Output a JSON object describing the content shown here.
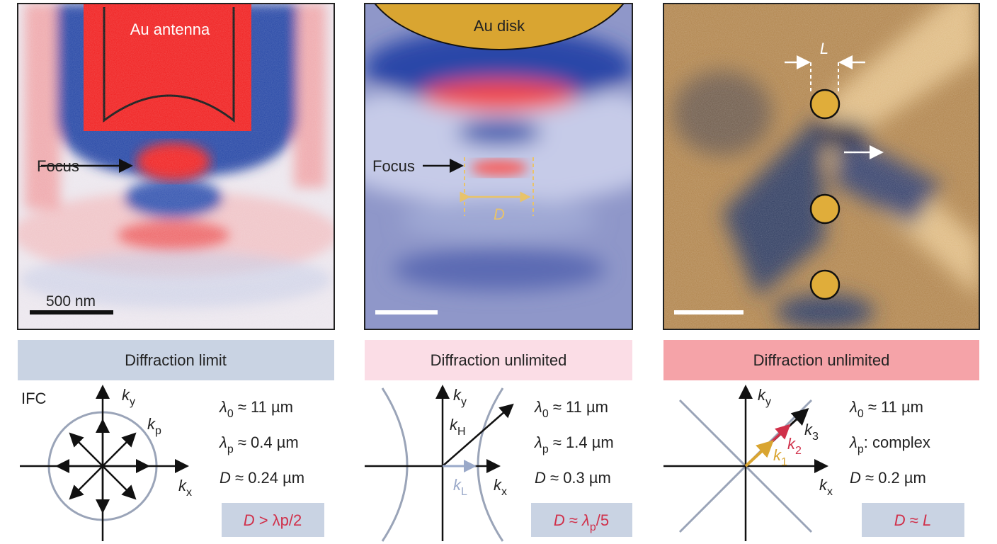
{
  "panels": [
    {
      "image_labels": {
        "material": "Au antenna",
        "focus": "Focus",
        "scale_bar": "500 nm"
      },
      "header": "Diffraction limit",
      "ifc_label": "IFC",
      "wavevectors": [
        {
          "segments": [
            {
              "text": "k",
              "style": "italic"
            },
            {
              "text": "y",
              "style": "sub"
            }
          ]
        },
        {
          "segments": [
            {
              "text": "k",
              "style": "italic"
            },
            {
              "text": "p",
              "style": "sub"
            }
          ]
        },
        {
          "segments": [
            {
              "text": "k",
              "style": "italic"
            },
            {
              "text": "x",
              "style": "sub"
            }
          ]
        }
      ],
      "equations": [
        {
          "segments": [
            {
              "text": "λ",
              "style": "italic"
            },
            {
              "text": "0",
              "style": "sub"
            },
            {
              "text": " ≈ 11 µm",
              "style": "plain"
            }
          ]
        },
        {
          "segments": [
            {
              "text": "λ",
              "style": "italic"
            },
            {
              "text": "p",
              "style": "sub"
            },
            {
              "text": " ≈ 0.4 µm",
              "style": "plain"
            }
          ]
        },
        {
          "segments": [
            {
              "text": "D",
              "style": "italic"
            },
            {
              "text": " ≈ 0.24 µm",
              "style": "plain"
            }
          ]
        }
      ],
      "conclusion": {
        "segments": [
          {
            "text": "D",
            "style": "italic"
          },
          {
            "text": " > λp/2",
            "style": "plain"
          }
        ]
      }
    },
    {
      "image_labels": {
        "material": "Au disk",
        "focus": "Focus",
        "width": "D"
      },
      "header": "Diffraction unlimited",
      "wavevectors": [
        {
          "segments": [
            {
              "text": "k",
              "style": "italic"
            },
            {
              "text": "y",
              "style": "sub"
            }
          ]
        },
        {
          "segments": [
            {
              "text": "k",
              "style": "italic"
            },
            {
              "text": "H",
              "style": "sub"
            }
          ]
        },
        {
          "segments": [
            {
              "text": "k",
              "style": "italic"
            },
            {
              "text": "L",
              "style": "sub"
            }
          ]
        },
        {
          "segments": [
            {
              "text": "k",
              "style": "italic"
            },
            {
              "text": "x",
              "style": "sub"
            }
          ]
        }
      ],
      "equations": [
        {
          "segments": [
            {
              "text": "λ",
              "style": "italic"
            },
            {
              "text": "0",
              "style": "sub"
            },
            {
              "text": " ≈ 11 µm",
              "style": "plain"
            }
          ]
        },
        {
          "segments": [
            {
              "text": "λ",
              "style": "italic"
            },
            {
              "text": "p",
              "style": "sub"
            },
            {
              "text": " ≈ 1.4 µm",
              "style": "plain"
            }
          ]
        },
        {
          "segments": [
            {
              "text": "D",
              "style": "italic"
            },
            {
              "text": " ≈ 0.3 µm",
              "style": "plain"
            }
          ]
        }
      ],
      "conclusion": {
        "segments": [
          {
            "text": "D",
            "style": "italic"
          },
          {
            "text": " ≈ ",
            "style": "plain"
          },
          {
            "text": "λ",
            "style": "italic"
          },
          {
            "text": "p",
            "style": "sub"
          },
          {
            "text": "/5",
            "style": "plain"
          }
        ]
      }
    },
    {
      "image_labels": {
        "spacing": "L"
      },
      "header": "Diffraction unlimited",
      "wavevectors": [
        {
          "segments": [
            {
              "text": "k",
              "style": "italic"
            },
            {
              "text": "y",
              "style": "sub"
            }
          ]
        },
        {
          "segments": [
            {
              "text": "k",
              "style": "italic"
            },
            {
              "text": "3",
              "style": "sub"
            }
          ]
        },
        {
          "segments": [
            {
              "text": "k",
              "style": "italic"
            },
            {
              "text": "2",
              "style": "sub"
            }
          ]
        },
        {
          "segments": [
            {
              "text": "k",
              "style": "italic"
            },
            {
              "text": "1",
              "style": "sub"
            }
          ]
        },
        {
          "segments": [
            {
              "text": "k",
              "style": "italic"
            },
            {
              "text": "x",
              "style": "sub"
            }
          ]
        }
      ],
      "equations": [
        {
          "segments": [
            {
              "text": "λ",
              "style": "italic"
            },
            {
              "text": "0",
              "style": "sub"
            },
            {
              "text": " ≈ 11 µm",
              "style": "plain"
            }
          ]
        },
        {
          "segments": [
            {
              "text": "λ",
              "style": "italic"
            },
            {
              "text": "p",
              "style": "sub"
            },
            {
              "text": ": complex",
              "style": "plain"
            }
          ]
        },
        {
          "segments": [
            {
              "text": "D",
              "style": "italic"
            },
            {
              "text": " ≈ 0.2 µm",
              "style": "plain"
            }
          ]
        }
      ],
      "conclusion": {
        "segments": [
          {
            "text": "D",
            "style": "italic"
          },
          {
            "text": " ≈ ",
            "style": "plain"
          },
          {
            "text": "L",
            "style": "italic"
          }
        ]
      }
    }
  ]
}
